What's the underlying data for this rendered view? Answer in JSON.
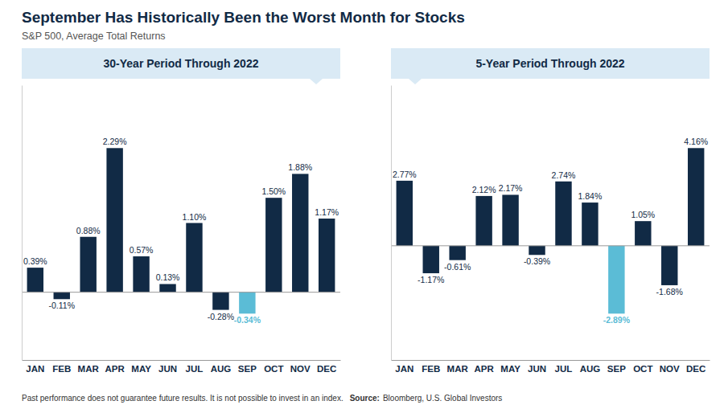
{
  "title": "September Has Historically Been the Worst Month for Stocks",
  "subtitle": "S&P 500, Average Total Returns",
  "footnote": "Past performance does not guarantee future results. It is not possible to invest in an index.",
  "source_label": "Source:",
  "source": "Bloomberg, U.S. Global Investors",
  "chart_data": [
    {
      "type": "bar",
      "title": "30-Year Period Through 2022",
      "categories": [
        "JAN",
        "FEB",
        "MAR",
        "APR",
        "MAY",
        "JUN",
        "JUL",
        "AUG",
        "SEP",
        "OCT",
        "NOV",
        "DEC"
      ],
      "values": [
        0.39,
        -0.11,
        0.88,
        2.29,
        0.57,
        0.13,
        1.1,
        -0.28,
        -0.34,
        1.5,
        1.88,
        1.17
      ],
      "value_labels": [
        "0.39%",
        "-0.11%",
        "0.88%",
        "2.29%",
        "0.57%",
        "0.13%",
        "1.10%",
        "-0.28%",
        "-0.34%",
        "1.50%",
        "1.88%",
        "1.17%"
      ],
      "colors": [
        "#112a45",
        "#112a45",
        "#112a45",
        "#112a45",
        "#112a45",
        "#112a45",
        "#112a45",
        "#112a45",
        "#5bbcd6",
        "#112a45",
        "#112a45",
        "#112a45"
      ],
      "ylim": [
        -1.0764,
        3.2894
      ],
      "data_labels": true,
      "grid": false,
      "tick_labels": "x"
    },
    {
      "type": "bar",
      "title": "5-Year Period Through 2022",
      "categories": [
        "JAN",
        "FEB",
        "MAR",
        "APR",
        "MAY",
        "JUN",
        "JUL",
        "AUG",
        "SEP",
        "OCT",
        "NOV",
        "DEC"
      ],
      "values": [
        2.77,
        -1.17,
        -0.61,
        2.12,
        2.17,
        -0.39,
        2.74,
        1.84,
        -2.89,
        1.05,
        -1.68,
        4.16
      ],
      "value_labels": [
        "2.77%",
        "-1.17%",
        "-0.61%",
        "2.12%",
        "2.17%",
        "-0.39%",
        "2.74%",
        "1.84%",
        "-2.89%",
        "1.05%",
        "-1.68%",
        "4.16%"
      ],
      "colors": [
        "#112a45",
        "#112a45",
        "#112a45",
        "#112a45",
        "#112a45",
        "#112a45",
        "#112a45",
        "#112a45",
        "#5bbcd6",
        "#112a45",
        "#112a45",
        "#112a45"
      ],
      "ylim": [
        -4.864,
        6.839
      ],
      "data_labels": true,
      "grid": false,
      "tick_labels": "x"
    }
  ]
}
